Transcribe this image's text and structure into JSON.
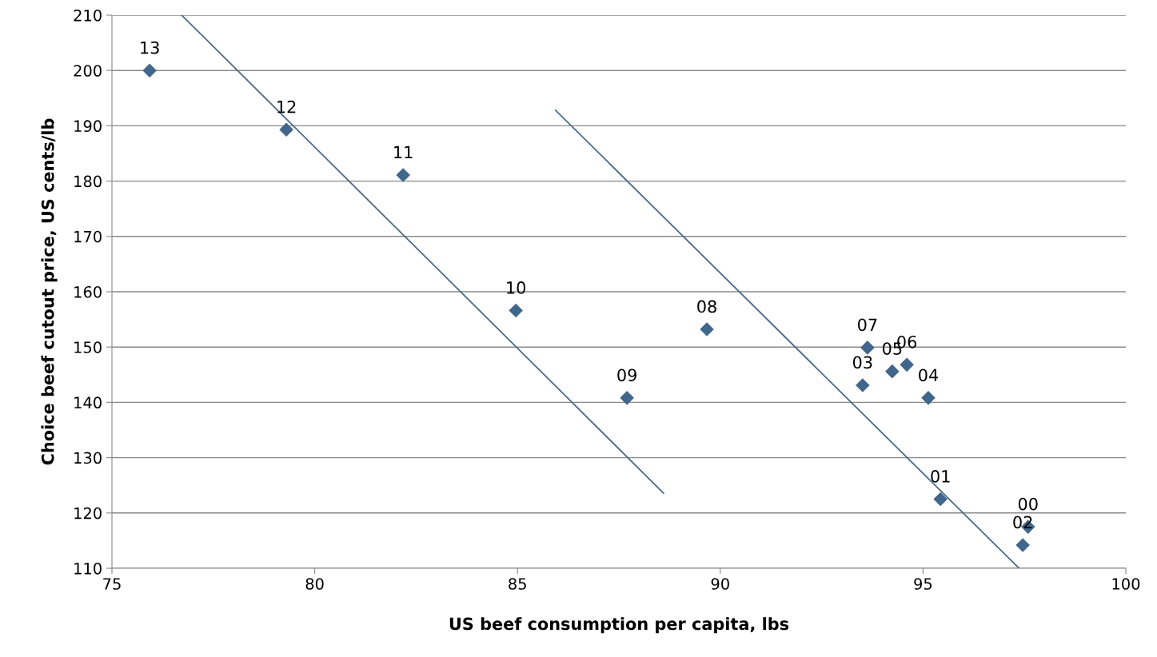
{
  "chart_data": {
    "type": "scatter",
    "xlabel": "US beef consumption per capita, lbs",
    "ylabel": "Choice beef cutout price, US cents/lb",
    "xlim": [
      75,
      100
    ],
    "xticks": [
      75,
      80,
      85,
      90,
      95,
      100
    ],
    "ylim": [
      110,
      210
    ],
    "yticks": [
      110,
      120,
      130,
      140,
      150,
      160,
      170,
      180,
      190,
      200,
      210
    ],
    "grid": "y",
    "legend": false,
    "marker": "diamond",
    "series": [
      {
        "color": "#41668c",
        "x": [
          75.93,
          79.3,
          82.18,
          84.96,
          87.7,
          89.67,
          93.63,
          93.51,
          94.24,
          94.6,
          95.13,
          95.43,
          97.59,
          97.46
        ],
        "values": [
          200.0,
          189.3,
          181.1,
          156.6,
          140.8,
          153.2,
          149.9,
          143.1,
          145.6,
          146.8,
          140.8,
          122.5,
          117.5,
          114.2
        ]
      },
      {
        "type": "line",
        "color": "#4a6b8a",
        "marker": "none",
        "x": [
          76.72,
          88.6
        ],
        "values": [
          210,
          123.6
        ]
      },
      {
        "type": "line",
        "color": "#4a6b8a",
        "marker": "none",
        "x": [
          85.94,
          97.37
        ],
        "values": [
          192.8,
          110
        ]
      }
    ],
    "annotations": [
      {
        "text": "13",
        "x": 75.93,
        "y": 200.0
      },
      {
        "text": "12",
        "x": 79.3,
        "y": 189.3
      },
      {
        "text": "11",
        "x": 82.18,
        "y": 181.1
      },
      {
        "text": "10",
        "x": 84.96,
        "y": 156.6
      },
      {
        "text": "09",
        "x": 87.7,
        "y": 140.8
      },
      {
        "text": "08",
        "x": 89.67,
        "y": 153.2
      },
      {
        "text": "07",
        "x": 93.63,
        "y": 149.9
      },
      {
        "text": "03",
        "x": 93.51,
        "y": 143.1
      },
      {
        "text": "05",
        "x": 94.24,
        "y": 145.6
      },
      {
        "text": "06",
        "x": 94.6,
        "y": 146.8
      },
      {
        "text": "04",
        "x": 95.13,
        "y": 140.8
      },
      {
        "text": "01",
        "x": 95.43,
        "y": 122.5
      },
      {
        "text": "00",
        "x": 97.59,
        "y": 117.5
      },
      {
        "text": "02",
        "x": 97.46,
        "y": 114.2
      }
    ]
  }
}
